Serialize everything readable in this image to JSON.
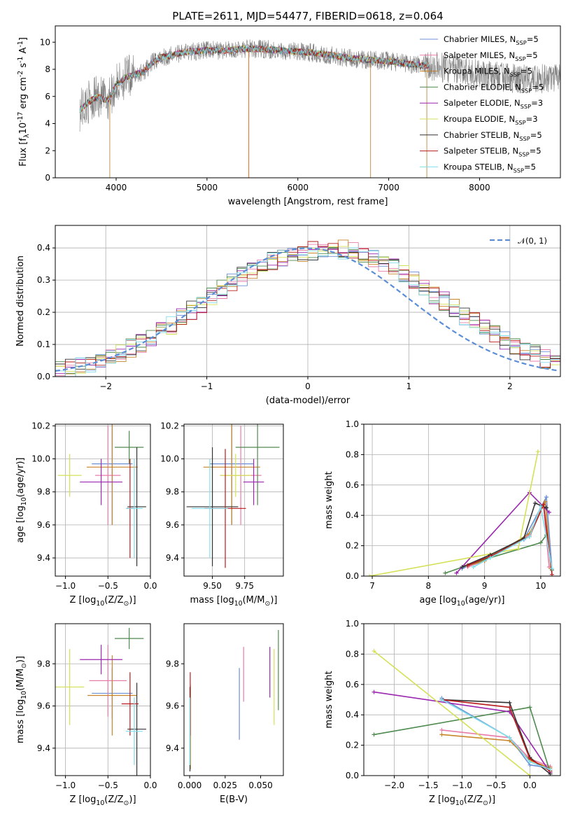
{
  "chart_data": [
    {
      "id": "spectrum",
      "type": "line",
      "title": "PLATE=2611, MJD=54477, FIBERID=0618, z=0.064",
      "xlabel": "wavelength [Angstrom, rest frame]",
      "ylabel": "Flux [f$_\\lambda$10$^{-17}$ erg cm$^{-2}$ s$^{-1}$ A$^{-1}$]",
      "xlim": [
        3330,
        8890
      ],
      "ylim": [
        0,
        11.2
      ],
      "xticks": [
        4000,
        5000,
        6000,
        7000,
        8000
      ],
      "yticks": [
        0,
        2,
        4,
        6,
        8,
        10
      ],
      "grid": false,
      "legend_position": "top-right",
      "legend": [
        {
          "name": "Chabrier MILES, N$_{SSP}$=5",
          "color": "#6b8fd4"
        },
        {
          "name": "Salpeter MILES, N$_{SSP}$=5",
          "color": "#e87ca8"
        },
        {
          "name": "Kroupa MILES, N$_{SSP}$=5",
          "color": "#c8852a"
        },
        {
          "name": "Chabrier ELODIE, N$_{SSP}$=5",
          "color": "#4f8a4f"
        },
        {
          "name": "Salpeter ELODIE, N$_{SSP}$=3",
          "color": "#9b27b0"
        },
        {
          "name": "Kroupa ELODIE, N$_{SSP}$=3",
          "color": "#d4e157"
        },
        {
          "name": "Chabrier STELIB, N$_{SSP}$=5",
          "color": "#333333"
        },
        {
          "name": "Salpeter STELIB, N$_{SSP}$=5",
          "color": "#b71c1c"
        },
        {
          "name": "Kroupa STELIB, N$_{SSP}$=5",
          "color": "#80deea"
        }
      ],
      "continuum_x": [
        3600,
        3700,
        3800,
        3900,
        4000,
        4100,
        4200,
        4300,
        4400,
        4500,
        4600,
        4700,
        4800,
        5000,
        5200,
        5400,
        5600,
        5800,
        6000,
        6200,
        6400,
        6600,
        6800,
        7000,
        7200,
        7400,
        7600,
        7800,
        8000,
        8200,
        8400,
        8600,
        8800
      ],
      "continuum_y": [
        5.0,
        5.6,
        6.0,
        5.7,
        6.8,
        7.4,
        7.6,
        7.8,
        8.5,
        8.9,
        9.0,
        9.2,
        9.3,
        9.4,
        9.4,
        9.5,
        9.5,
        9.4,
        9.3,
        9.2,
        9.0,
        8.8,
        8.7,
        8.6,
        8.4,
        8.3,
        8.1,
        7.9,
        7.6,
        7.5,
        7.3,
        7.3,
        7.3
      ],
      "data_spikes_x": [
        3930,
        5460,
        6800,
        7420
      ],
      "data_spikes_y": [
        0,
        0,
        0,
        0
      ]
    },
    {
      "id": "residuals",
      "type": "line",
      "xlabel": "(data-model)/error",
      "ylabel": "Normed distribution",
      "xlim": [
        -2.5,
        2.5
      ],
      "ylim": [
        0,
        0.47
      ],
      "xticks": [
        -2,
        -1,
        0,
        1,
        2
      ],
      "yticks": [
        0.0,
        0.1,
        0.2,
        0.3,
        0.4
      ],
      "grid": true,
      "legend_position": "top-right",
      "legend": [
        {
          "name": "$\\mathcal{N}(0, 1)$",
          "color": "#5b8ed6",
          "style": "dashed"
        }
      ],
      "bin_edges_start": -2.5,
      "bin_width": 0.1,
      "histogram_center": [
        0.022,
        0.025,
        0.032,
        0.04,
        0.048,
        0.06,
        0.072,
        0.088,
        0.104,
        0.12,
        0.142,
        0.16,
        0.185,
        0.205,
        0.228,
        0.25,
        0.272,
        0.292,
        0.312,
        0.33,
        0.348,
        0.36,
        0.372,
        0.38,
        0.388,
        0.392,
        0.395,
        0.398,
        0.395,
        0.39,
        0.38,
        0.368,
        0.352,
        0.336,
        0.318,
        0.298,
        0.276,
        0.255,
        0.235,
        0.212,
        0.19,
        0.17,
        0.15,
        0.13,
        0.112,
        0.096,
        0.082,
        0.068,
        0.056,
        0.045
      ]
    },
    {
      "id": "age-vs-Z",
      "type": "scatter",
      "xlabel": "Z [log$_{10}$(Z/Z$_\\odot$)]",
      "ylabel": "age  [log$_{10}$(age/yr)]",
      "xlim": [
        -1.12,
        0.0
      ],
      "ylim": [
        9.29,
        10.21
      ],
      "xticks": [
        -1.0,
        -0.5,
        0.0
      ],
      "yticks": [
        9.4,
        9.6,
        9.8,
        10.0,
        10.2
      ],
      "grid": true,
      "points": [
        {
          "series": "Chabrier MILES, N$_{SSP}$=5",
          "x": -0.45,
          "y": 9.97,
          "xerr": 0.24,
          "yerr": 0.37
        },
        {
          "series": "Salpeter MILES, N$_{SSP}$=5",
          "x": -0.5,
          "y": 9.9,
          "xerr": 0.15,
          "yerr": 0.3
        },
        {
          "series": "Kroupa MILES, N$_{SSP}$=5",
          "x": -0.45,
          "y": 9.95,
          "xerr": 0.3,
          "yerr": 0.35
        },
        {
          "series": "Chabrier ELODIE, N$_{SSP}$=5",
          "x": -0.25,
          "y": 10.07,
          "xerr": 0.17,
          "yerr": 0.1
        },
        {
          "series": "Salpeter ELODIE, N$_{SSP}$=3",
          "x": -0.58,
          "y": 9.86,
          "xerr": 0.25,
          "yerr": 0.14
        },
        {
          "series": "Kroupa ELODIE, N$_{SSP}$=3",
          "x": -0.95,
          "y": 9.9,
          "xerr": 0.14,
          "yerr": 0.13
        },
        {
          "series": "Chabrier STELIB, N$_{SSP}$=5",
          "x": -0.16,
          "y": 9.71,
          "xerr": 0.11,
          "yerr": 0.36
        },
        {
          "series": "Salpeter STELIB, N$_{SSP}$=5",
          "x": -0.24,
          "y": 9.7,
          "xerr": 0.04,
          "yerr": 0.3
        },
        {
          "series": "Kroupa STELIB, N$_{SSP}$=5",
          "x": -0.19,
          "y": 9.7,
          "xerr": 0.1,
          "yerr": 0.3
        }
      ]
    },
    {
      "id": "age-vs-mass",
      "type": "scatter",
      "xlabel": "mass [log$_{10}$(M/M$_\\odot$)]",
      "xlim": [
        9.28,
        10.05
      ],
      "ylim": [
        9.29,
        10.21
      ],
      "xticks": [
        9.5,
        9.75
      ],
      "yticks": [
        9.4,
        9.6,
        9.8,
        10.0,
        10.2
      ],
      "grid": true,
      "points": [
        {
          "series": "Chabrier MILES, N$_{SSP}$=5",
          "x": 9.65,
          "y": 9.97,
          "xerr": 0.17,
          "yerr": 0.37
        },
        {
          "series": "Salpeter MILES, N$_{SSP}$=5",
          "x": 9.72,
          "y": 9.9,
          "xerr": 0.16,
          "yerr": 0.3
        },
        {
          "series": "Kroupa MILES, N$_{SSP}$=5",
          "x": 9.65,
          "y": 9.95,
          "xerr": 0.22,
          "yerr": 0.35
        },
        {
          "series": "Chabrier ELODIE, N$_{SSP}$=5",
          "x": 9.85,
          "y": 10.07,
          "xerr": 0.17,
          "yerr": 0.35
        },
        {
          "series": "Salpeter ELODIE, N$_{SSP}$=3",
          "x": 9.82,
          "y": 9.86,
          "xerr": 0.08,
          "yerr": 0.14
        },
        {
          "series": "Kroupa ELODIE, N$_{SSP}$=3",
          "x": 9.68,
          "y": 9.9,
          "xerr": 0.12,
          "yerr": 0.13
        },
        {
          "series": "Chabrier STELIB, N$_{SSP}$=5",
          "x": 9.5,
          "y": 9.71,
          "xerr": 0.2,
          "yerr": 0.36
        },
        {
          "series": "Salpeter STELIB, N$_{SSP}$=5",
          "x": 9.6,
          "y": 9.7,
          "xerr": 0.16,
          "yerr": 0.36
        },
        {
          "series": "Kroupa STELIB, N$_{SSP}$=5",
          "x": 9.48,
          "y": 9.7,
          "xerr": 0.14,
          "yerr": 0.3
        }
      ]
    },
    {
      "id": "weight-vs-age",
      "type": "line",
      "xlabel": "age  [log$_{10}$(age/yr)]",
      "ylabel": "mass weight",
      "xlim": [
        6.85,
        10.35
      ],
      "ylim": [
        0.0,
        1.0
      ],
      "xticks": [
        7,
        8,
        9,
        10
      ],
      "yticks": [
        0.0,
        0.2,
        0.4,
        0.6,
        0.8,
        1.0
      ],
      "grid": true,
      "series": [
        {
          "name": "Chabrier MILES, N$_{SSP}$=5",
          "x": [
            8.6,
            9.0,
            9.7,
            10.1,
            10.2
          ],
          "y": [
            0.05,
            0.11,
            0.24,
            0.52,
            0.04
          ]
        },
        {
          "name": "Salpeter MILES, N$_{SSP}$=5",
          "x": [
            8.7,
            9.0,
            9.8,
            10.05,
            10.15
          ],
          "y": [
            0.06,
            0.1,
            0.27,
            0.47,
            0.06
          ]
        },
        {
          "name": "Kroupa MILES, N$_{SSP}$=5",
          "x": [
            8.7,
            9.0,
            9.8,
            10.08,
            10.18
          ],
          "y": [
            0.07,
            0.1,
            0.28,
            0.49,
            0.05
          ]
        },
        {
          "name": "Chabrier ELODIE, N$_{SSP}$=5",
          "x": [
            8.3,
            9.0,
            10.0,
            10.1,
            10.2
          ],
          "y": [
            0.02,
            0.11,
            0.22,
            0.27,
            0.04
          ]
        },
        {
          "name": "Salpeter ELODIE, N$_{SSP}$=3",
          "x": [
            8.5,
            9.8,
            10.15
          ],
          "y": [
            0.02,
            0.55,
            0.42
          ]
        },
        {
          "name": "Kroupa ELODIE, N$_{SSP}$=3",
          "x": [
            6.95,
            9.6,
            9.95
          ],
          "y": [
            0.0,
            0.18,
            0.82
          ]
        },
        {
          "name": "Chabrier STELIB, N$_{SSP}$=5",
          "x": [
            8.6,
            9.1,
            9.7,
            9.9,
            10.1
          ],
          "y": [
            0.06,
            0.14,
            0.25,
            0.48,
            0.45
          ]
        },
        {
          "name": "Salpeter STELIB, N$_{SSP}$=5",
          "x": [
            8.7,
            9.1,
            9.8,
            10.05,
            10.2
          ],
          "y": [
            0.07,
            0.13,
            0.26,
            0.47,
            0.01
          ]
        },
        {
          "name": "Kroupa STELIB, N$_{SSP}$=5",
          "x": [
            8.8,
            9.1,
            9.8,
            10.0,
            10.2
          ],
          "y": [
            0.06,
            0.12,
            0.26,
            0.46,
            0.05
          ]
        }
      ]
    },
    {
      "id": "mass-vs-Z",
      "type": "scatter",
      "xlabel": "Z [log$_{10}$(Z/Z$_\\odot$)]",
      "ylabel": "mass [log$_{10}$(M/M$_\\odot$)]",
      "xlim": [
        -1.12,
        0.0
      ],
      "ylim": [
        9.27,
        9.99
      ],
      "xticks": [
        -1.0,
        -0.5,
        0.0
      ],
      "yticks": [
        9.4,
        9.6,
        9.8
      ],
      "grid": true,
      "points": [
        {
          "series": "Chabrier MILES, N$_{SSP}$=5",
          "x": -0.45,
          "y": 9.66,
          "xerr": 0.24,
          "yerr": 0.12
        },
        {
          "series": "Salpeter MILES, N$_{SSP}$=5",
          "x": -0.5,
          "y": 9.72,
          "xerr": 0.22,
          "yerr": 0.17
        },
        {
          "series": "Kroupa MILES, N$_{SSP}$=5",
          "x": -0.45,
          "y": 9.65,
          "xerr": 0.29,
          "yerr": 0.19
        },
        {
          "series": "Chabrier ELODIE, N$_{SSP}$=5",
          "x": -0.25,
          "y": 9.92,
          "xerr": 0.17,
          "yerr": 0.05
        },
        {
          "series": "Salpeter ELODIE, N$_{SSP}$=3",
          "x": -0.58,
          "y": 9.82,
          "xerr": 0.25,
          "yerr": 0.07
        },
        {
          "series": "Kroupa ELODIE, N$_{SSP}$=3",
          "x": -0.95,
          "y": 9.69,
          "xerr": 0.17,
          "yerr": 0.18
        },
        {
          "series": "Chabrier STELIB, N$_{SSP}$=5",
          "x": -0.16,
          "y": 9.49,
          "xerr": 0.11,
          "yerr": 0.22
        },
        {
          "series": "Salpeter STELIB, N$_{SSP}$=5",
          "x": -0.24,
          "y": 9.61,
          "xerr": 0.1,
          "yerr": 0.15
        },
        {
          "series": "Kroupa STELIB, N$_{SSP}$=5",
          "x": -0.19,
          "y": 9.48,
          "xerr": 0.1,
          "yerr": 0.16
        }
      ]
    },
    {
      "id": "mass-vs-ebv",
      "type": "scatter",
      "xlabel": "E(B-V)",
      "xlim": [
        -0.004,
        0.066
      ],
      "ylim": [
        9.27,
        9.99
      ],
      "xticks": [
        0.0,
        0.025,
        0.05
      ],
      "yticks": [
        9.4,
        9.6,
        9.8
      ],
      "grid": false,
      "points": [
        {
          "series": "Chabrier MILES, N$_{SSP}$=5",
          "x": 0.035,
          "y": 9.61,
          "yerr": 0.17
        },
        {
          "series": "Salpeter MILES, N$_{SSP}$=5",
          "x": 0.038,
          "y": 9.75,
          "yerr": 0.13
        },
        {
          "series": "Kroupa MILES, N$_{SSP}$=5",
          "x": 0.0005,
          "y": 9.5,
          "yerr": 0.2
        },
        {
          "series": "Chabrier ELODIE, N$_{SSP}$=5",
          "x": 0.0625,
          "y": 9.77,
          "yerr": 0.19
        },
        {
          "series": "Salpeter ELODIE, N$_{SSP}$=3",
          "x": 0.0565,
          "y": 9.76,
          "yerr": 0.12
        },
        {
          "series": "Kroupa ELODIE, N$_{SSP}$=3",
          "x": 0.0595,
          "y": 9.69,
          "yerr": 0.18
        },
        {
          "series": "Chabrier STELIB, N$_{SSP}$=5",
          "x": 0.0002,
          "y": 9.49,
          "yerr": 0.2
        },
        {
          "series": "Salpeter STELIB, N$_{SSP}$=5",
          "x": 0.0004,
          "y": 9.61,
          "yerr": 0.15
        },
        {
          "series": "Kroupa STELIB, N$_{SSP}$=5",
          "x": 0.0001,
          "y": 9.48,
          "yerr": 0.16
        }
      ]
    },
    {
      "id": "weight-vs-Z",
      "type": "line",
      "xlabel": "Z [log$_{10}$(Z/Z$_\\odot$)]",
      "ylabel": "mass weight",
      "xlim": [
        -2.45,
        0.45
      ],
      "ylim": [
        0.0,
        1.0
      ],
      "xticks": [
        -2.0,
        -1.5,
        -1.0,
        -0.5,
        0.0
      ],
      "yticks": [
        0.0,
        0.2,
        0.4,
        0.6,
        0.8,
        1.0
      ],
      "grid": true,
      "series": [
        {
          "name": "Chabrier MILES, N$_{SSP}$=5",
          "x": [
            -1.3,
            -0.3,
            0.0,
            0.3
          ],
          "y": [
            0.51,
            0.25,
            0.07,
            0.05
          ]
        },
        {
          "name": "Salpeter MILES, N$_{SSP}$=5",
          "x": [
            -1.3,
            -0.3,
            0.0,
            0.3
          ],
          "y": [
            0.3,
            0.25,
            0.11,
            0.06
          ]
        },
        {
          "name": "Kroupa MILES, N$_{SSP}$=5",
          "x": [
            -1.3,
            -0.3,
            0.0,
            0.3
          ],
          "y": [
            0.27,
            0.23,
            0.1,
            0.05
          ]
        },
        {
          "name": "Chabrier ELODIE, N$_{SSP}$=5",
          "x": [
            -2.3,
            0.0,
            0.3
          ],
          "y": [
            0.27,
            0.45,
            0.02
          ]
        },
        {
          "name": "Salpeter ELODIE, N$_{SSP}$=3",
          "x": [
            -2.3,
            -0.3,
            0.3
          ],
          "y": [
            0.55,
            0.42,
            0.02
          ]
        },
        {
          "name": "Kroupa ELODIE, N$_{SSP}$=3",
          "x": [
            -2.3,
            0.0
          ],
          "y": [
            0.82,
            0.0
          ]
        },
        {
          "name": "Chabrier STELIB, N$_{SSP}$=5",
          "x": [
            -1.3,
            -0.3,
            0.0,
            0.3
          ],
          "y": [
            0.5,
            0.48,
            0.12,
            0.01
          ]
        },
        {
          "name": "Salpeter STELIB, N$_{SSP}$=5",
          "x": [
            -1.3,
            -0.3,
            0.0,
            0.3
          ],
          "y": [
            0.5,
            0.45,
            0.11,
            0.03
          ]
        },
        {
          "name": "Kroupa STELIB, N$_{SSP}$=5",
          "x": [
            -1.3,
            -0.3,
            0.0,
            0.3
          ],
          "y": [
            0.5,
            0.25,
            0.09,
            0.04
          ]
        }
      ]
    }
  ]
}
